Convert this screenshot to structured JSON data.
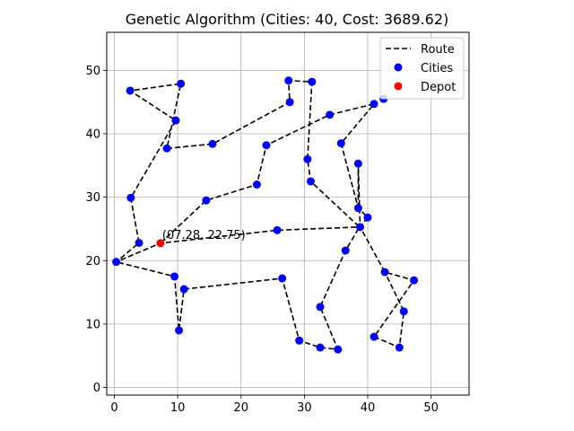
{
  "chart_data": {
    "type": "scatter",
    "title": "Genetic Algorithm (Cities: 40, Cost: 3689.62)",
    "xlabel": "",
    "ylabel": "",
    "xlim": [
      -1.2,
      56
    ],
    "ylim": [
      -1.2,
      56
    ],
    "x_ticks": [
      0,
      10,
      20,
      30,
      40,
      50
    ],
    "y_ticks": [
      0,
      10,
      20,
      30,
      40,
      50
    ],
    "grid": true,
    "legend": {
      "placement": "top-right",
      "entries": [
        {
          "label": "Route",
          "kind": "line",
          "color": "#000000",
          "style": "dashed"
        },
        {
          "label": "Cities",
          "kind": "marker",
          "color": "#0000ff"
        },
        {
          "label": "Depot",
          "kind": "marker",
          "color": "#ff0000"
        }
      ]
    },
    "depot": {
      "x": 7.28,
      "y": 22.75
    },
    "depot_annotation": "(07.28, 22.75)",
    "route": [
      [
        7.28,
        22.75
      ],
      [
        14.5,
        29.5
      ],
      [
        22.5,
        32.0
      ],
      [
        24.0,
        38.2
      ],
      [
        34.0,
        43.0
      ],
      [
        41.0,
        44.7
      ],
      [
        35.8,
        38.5
      ],
      [
        38.5,
        28.3
      ],
      [
        40.0,
        26.8
      ],
      [
        38.8,
        25.3
      ],
      [
        25.7,
        24.8
      ],
      [
        7.28,
        22.75
      ],
      [
        0.3,
        19.8
      ],
      [
        3.9,
        22.8
      ],
      [
        2.6,
        29.9
      ],
      [
        9.7,
        42.1
      ],
      [
        2.5,
        46.8
      ],
      [
        10.5,
        47.9
      ],
      [
        8.3,
        37.7
      ],
      [
        15.5,
        38.4
      ],
      [
        27.7,
        45.0
      ],
      [
        27.5,
        48.4
      ],
      [
        31.2,
        48.2
      ],
      [
        30.5,
        36.0
      ],
      [
        31.0,
        32.5
      ],
      [
        38.7,
        25.3
      ],
      [
        36.5,
        21.6
      ],
      [
        32.5,
        12.7
      ],
      [
        35.3,
        6.0
      ],
      [
        32.5,
        6.3
      ],
      [
        29.2,
        7.4
      ],
      [
        26.5,
        17.2
      ],
      [
        11.0,
        15.5
      ],
      [
        10.2,
        9.0
      ],
      [
        9.5,
        17.5
      ],
      [
        0.3,
        19.8
      ]
    ],
    "cities": [
      [
        0.3,
        19.8
      ],
      [
        2.5,
        46.8
      ],
      [
        2.6,
        29.9
      ],
      [
        3.9,
        22.8
      ],
      [
        8.3,
        37.7
      ],
      [
        9.5,
        17.5
      ],
      [
        9.7,
        42.1
      ],
      [
        10.2,
        9.0
      ],
      [
        10.5,
        47.9
      ],
      [
        11.0,
        15.5
      ],
      [
        14.5,
        29.5
      ],
      [
        15.5,
        38.4
      ],
      [
        22.5,
        32.0
      ],
      [
        24.0,
        38.2
      ],
      [
        25.7,
        24.8
      ],
      [
        26.5,
        17.2
      ],
      [
        27.5,
        48.4
      ],
      [
        27.7,
        45.0
      ],
      [
        29.2,
        7.4
      ],
      [
        30.5,
        36.0
      ],
      [
        31.0,
        32.5
      ],
      [
        31.2,
        48.2
      ],
      [
        32.5,
        6.3
      ],
      [
        32.5,
        12.7
      ],
      [
        34.0,
        43.0
      ],
      [
        35.3,
        6.0
      ],
      [
        35.8,
        38.5
      ],
      [
        36.5,
        21.6
      ],
      [
        38.5,
        35.3
      ],
      [
        38.5,
        28.3
      ],
      [
        38.8,
        25.3
      ],
      [
        40.0,
        26.8
      ],
      [
        41.0,
        44.7
      ],
      [
        41.0,
        8.0
      ],
      [
        42.5,
        45.5
      ],
      [
        42.7,
        18.2
      ],
      [
        45.0,
        6.3
      ],
      [
        45.7,
        12.0
      ],
      [
        47.3,
        16.9
      ]
    ],
    "route_extra": [
      [
        38.5,
        28.3
      ],
      [
        38.5,
        35.3
      ],
      [
        38.8,
        25.3
      ],
      [
        42.7,
        18.2
      ],
      [
        47.3,
        16.9
      ],
      [
        41.0,
        8.0
      ],
      [
        45.0,
        6.3
      ],
      [
        45.7,
        12.0
      ],
      [
        42.7,
        18.2
      ]
    ],
    "colors": {
      "city": "#0000ff",
      "depot": "#ff0000",
      "route": "#000000",
      "grid": "#b0b0b0"
    }
  }
}
